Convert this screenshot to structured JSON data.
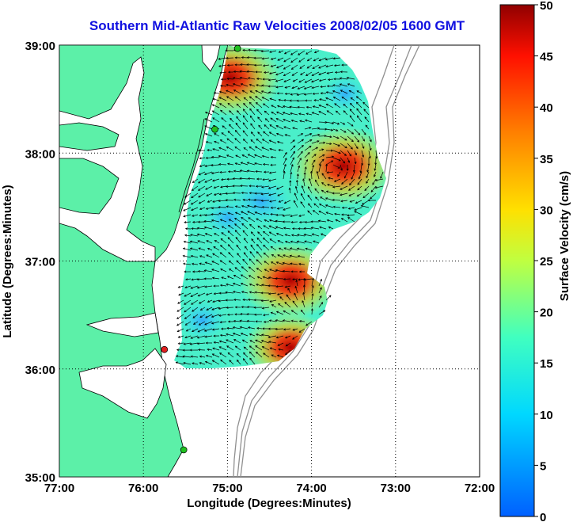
{
  "title": "Southern Mid-Atlantic Raw Velocities 2008/02/05 1600 GMT",
  "chart_data": {
    "type": "heatmap",
    "title": "Southern Mid-Atlantic Raw Velocities 2008/02/05 1600 GMT",
    "xlabel": "Longitude (Degrees:Minutes)",
    "ylabel": "Latitude (Degrees:Minutes)",
    "xlim": [
      -77,
      -72
    ],
    "ylim": [
      35,
      39
    ],
    "x_ticks": [
      "77:00",
      "76:00",
      "75:00",
      "74:00",
      "73:00",
      "72:00"
    ],
    "y_ticks": [
      "39:00",
      "38:00",
      "37:00",
      "36:00",
      "35:00"
    ],
    "grid": "dotted",
    "colorbar": {
      "label": "Surface Velocity (cm/s)",
      "range": [
        0,
        50
      ],
      "ticks": [
        "50",
        "45",
        "40",
        "35",
        "30",
        "25",
        "20",
        "15",
        "10",
        "5",
        "0"
      ],
      "placement": "right"
    },
    "colors": {
      "land": "#5cf0a8",
      "coast": "#000000",
      "bathymetry": "#909090",
      "title": "#1010e0"
    },
    "stations": [
      {
        "lon": -74.88,
        "lat": 38.97,
        "color": "#20c020"
      },
      {
        "lon": -75.15,
        "lat": 38.22,
        "color": "#20c020"
      },
      {
        "lon": -75.75,
        "lat": 36.18,
        "color": "#e02020"
      },
      {
        "lon": -75.52,
        "lat": 35.25,
        "color": "#20c020"
      }
    ],
    "velocity_hotspots": [
      {
        "lon": -74.97,
        "lat": 38.7,
        "speed": 45
      },
      {
        "lon": -73.62,
        "lat": 37.88,
        "speed": 47
      },
      {
        "lon": -74.25,
        "lat": 36.82,
        "speed": 44
      },
      {
        "lon": -74.25,
        "lat": 36.2,
        "speed": 38
      }
    ]
  }
}
